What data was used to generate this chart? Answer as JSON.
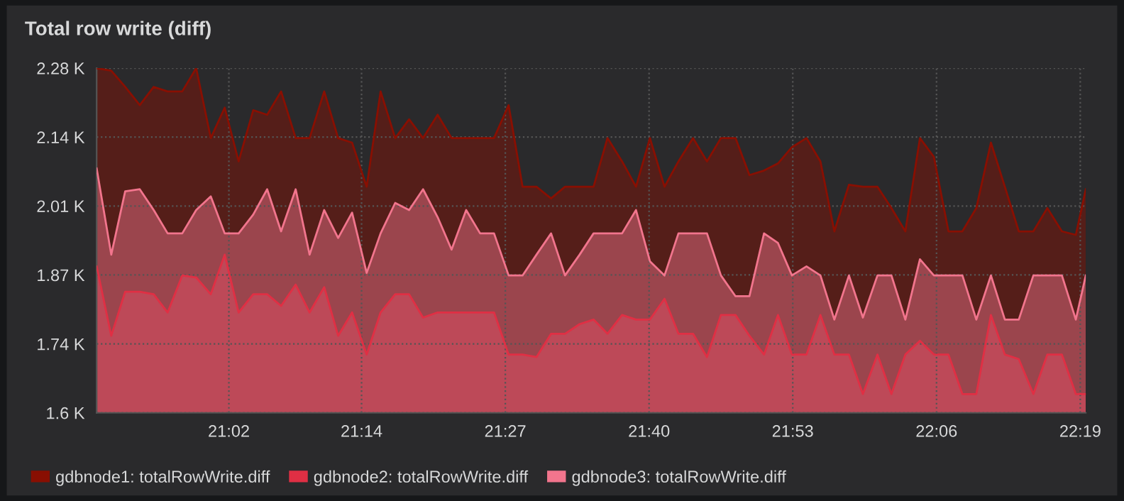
{
  "chart_data": {
    "type": "area",
    "title": "Total row write (diff)",
    "x": [
      20.834,
      20.856,
      20.877,
      20.899,
      20.92,
      20.941,
      20.963,
      20.984,
      21.006,
      21.027,
      21.048,
      21.07,
      21.091,
      21.112,
      21.134,
      21.155,
      21.177,
      21.198,
      21.219,
      21.241,
      21.262,
      21.284,
      21.305,
      21.326,
      21.348,
      21.369,
      21.391,
      21.412,
      21.433,
      21.455,
      21.476,
      21.497,
      21.519,
      21.54,
      21.562,
      21.583,
      21.604,
      21.626,
      21.647,
      21.668,
      21.69,
      21.711,
      21.733,
      21.754,
      21.775,
      21.797,
      21.818,
      21.84,
      21.861,
      21.882,
      21.904,
      21.925,
      21.946,
      21.968,
      21.989,
      22.011,
      22.032,
      22.053,
      22.075,
      22.096,
      22.118,
      22.139,
      22.16,
      22.182,
      22.203,
      22.224,
      22.246,
      22.267,
      22.289,
      22.31,
      22.325
    ],
    "series": [
      {
        "name": "gdbnode1: totalRowWrite.diff",
        "color": "#890f02",
        "values": [
          2280,
          2275,
          2243,
          2207,
          2243,
          2234,
          2234,
          2280,
          2142,
          2202,
          2096,
          2197,
          2188,
          2234,
          2142,
          2142,
          2234,
          2142,
          2133,
          2046,
          2234,
          2142,
          2179,
          2142,
          2188,
          2142,
          2142,
          2142,
          2142,
          2207,
          2046,
          2046,
          2023,
          2046,
          2046,
          2046,
          2142,
          2096,
          2046,
          2142,
          2046,
          2096,
          2142,
          2096,
          2142,
          2142,
          2069,
          2078,
          2092,
          2124,
          2142,
          2096,
          1958,
          2050,
          2046,
          2046,
          2004,
          1958,
          2142,
          2105,
          1958,
          1958,
          2004,
          2133,
          2046,
          1958,
          1958,
          2004,
          1958,
          1951,
          2041
        ]
      },
      {
        "name": "gdbnode2: totalRowWrite.diff",
        "color": "#e02f44",
        "values": [
          1889,
          1752,
          1839,
          1839,
          1834,
          1798,
          1871,
          1867,
          1834,
          1912,
          1798,
          1834,
          1834,
          1811,
          1853,
          1798,
          1848,
          1752,
          1798,
          1715,
          1798,
          1834,
          1834,
          1788,
          1798,
          1798,
          1798,
          1798,
          1798,
          1715,
          1715,
          1710,
          1756,
          1756,
          1775,
          1784,
          1756,
          1793,
          1784,
          1784,
          1825,
          1756,
          1756,
          1710,
          1793,
          1793,
          1752,
          1715,
          1793,
          1715,
          1715,
          1793,
          1715,
          1715,
          1637,
          1715,
          1637,
          1715,
          1742,
          1715,
          1715,
          1637,
          1637,
          1793,
          1715,
          1706,
          1637,
          1715,
          1715,
          1637,
          1637
        ]
      },
      {
        "name": "gdbnode3: totalRowWrite.diff",
        "color": "#f2758d",
        "values": [
          2082,
          1912,
          2037,
          2041,
          2000,
          1954,
          1954,
          2000,
          2027,
          1954,
          1954,
          1991,
          2041,
          1958,
          2041,
          1912,
          2000,
          1945,
          1995,
          1876,
          1954,
          2014,
          2000,
          2041,
          1986,
          1922,
          2000,
          1954,
          1954,
          1871,
          1871,
          1912,
          1954,
          1871,
          1912,
          1954,
          1954,
          1954,
          2000,
          1899,
          1871,
          1954,
          1954,
          1954,
          1871,
          1830,
          1830,
          1954,
          1935,
          1871,
          1889,
          1871,
          1784,
          1871,
          1788,
          1871,
          1871,
          1784,
          1903,
          1871,
          1871,
          1871,
          1784,
          1871,
          1784,
          1784,
          1871,
          1871,
          1871,
          1784,
          1871
        ]
      }
    ],
    "xlim": [
      20.834,
      22.325
    ],
    "xticks": [
      {
        "value": 21.0333,
        "label": "21:02"
      },
      {
        "value": 21.2333,
        "label": "21:14"
      },
      {
        "value": 21.45,
        "label": "21:27"
      },
      {
        "value": 21.6667,
        "label": "21:40"
      },
      {
        "value": 21.8833,
        "label": "21:53"
      },
      {
        "value": 22.1,
        "label": "22:06"
      },
      {
        "value": 22.3167,
        "label": "22:19"
      }
    ],
    "ylim": [
      1600,
      2280
    ],
    "yticks": [
      {
        "value": 1600,
        "label": "1.6 K"
      },
      {
        "value": 1736,
        "label": "1.74 K"
      },
      {
        "value": 1872,
        "label": "1.87 K"
      },
      {
        "value": 2008,
        "label": "2.01 K"
      },
      {
        "value": 2144,
        "label": "2.14 K"
      },
      {
        "value": 2280,
        "label": "2.28 K"
      }
    ],
    "grid": true,
    "legend": "bottom",
    "line_style": "solid",
    "marker": "none"
  }
}
